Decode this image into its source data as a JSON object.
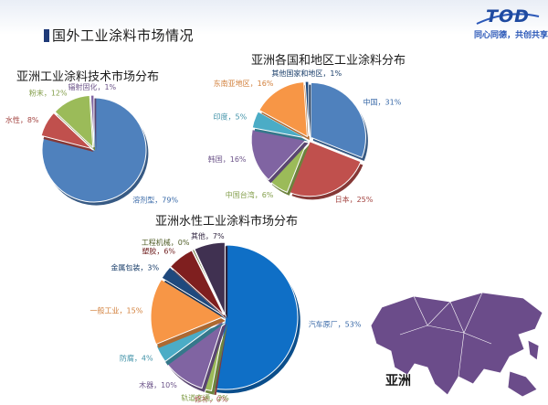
{
  "header": {
    "page_title": "国外工业涂料市场情况",
    "logo": "TOD",
    "slogan": "同心同德，共创共享"
  },
  "colors": {
    "blue": "#4f81bd",
    "red": "#c0504d",
    "green": "#9bbb59",
    "purple": "#8064a2",
    "cyan": "#4bacc6",
    "orange": "#f79646",
    "navy": "#1f497d",
    "darkred": "#7f1f1f",
    "darkpurple": "#403151",
    "map_purple": "#6b4c8a"
  },
  "map": {
    "label": "亚洲"
  },
  "chart_data": [
    {
      "type": "pie",
      "title": "亚洲工业涂料技术市场分布",
      "slices": [
        {
          "label": "溶剂型，79%",
          "value": 79,
          "color": "#4f81bd"
        },
        {
          "label": "水性，8%",
          "value": 8,
          "color": "#c0504d"
        },
        {
          "label": "粉末，12%",
          "value": 12,
          "color": "#9bbb59"
        },
        {
          "label": "辐射固化，1%",
          "value": 1,
          "color": "#8064a2"
        }
      ]
    },
    {
      "type": "pie",
      "title": "亚洲各国和地区工业涂料分布",
      "slices": [
        {
          "label": "中国，31%",
          "value": 31,
          "color": "#4f81bd"
        },
        {
          "label": "日本，25%",
          "value": 25,
          "color": "#c0504d"
        },
        {
          "label": "中国台湾，6%",
          "value": 6,
          "color": "#9bbb59"
        },
        {
          "label": "韩国，16%",
          "value": 16,
          "color": "#8064a2"
        },
        {
          "label": "印度，5%",
          "value": 5,
          "color": "#4bacc6"
        },
        {
          "label": "东南亚地区，16%",
          "value": 16,
          "color": "#f79646"
        },
        {
          "label": "其他国家和地区，1%",
          "value": 1,
          "color": "#1f497d"
        }
      ]
    },
    {
      "type": "pie",
      "title": "亚洲水性工业涂料市场分布",
      "slices": [
        {
          "label": "汽车原厂，53%",
          "value": 53,
          "color": "#0f6fc6"
        },
        {
          "label": "修补，0%",
          "value": 0.4,
          "color": "#c0504d"
        },
        {
          "label": "轨道交通，2%",
          "value": 2,
          "color": "#9bbb59"
        },
        {
          "label": "木器，10%",
          "value": 10,
          "color": "#8064a2"
        },
        {
          "label": "防腐，4%",
          "value": 4,
          "color": "#4bacc6"
        },
        {
          "label": "一般工业，15%",
          "value": 15,
          "color": "#f79646"
        },
        {
          "label": "金属包装，3%",
          "value": 3,
          "color": "#1f497d"
        },
        {
          "label": "塑胶，6%",
          "value": 6,
          "color": "#7f1f1f"
        },
        {
          "label": "工程机械，0%",
          "value": 0.4,
          "color": "#5f6f2f"
        },
        {
          "label": "其他，7%",
          "value": 7,
          "color": "#403151"
        }
      ]
    }
  ]
}
